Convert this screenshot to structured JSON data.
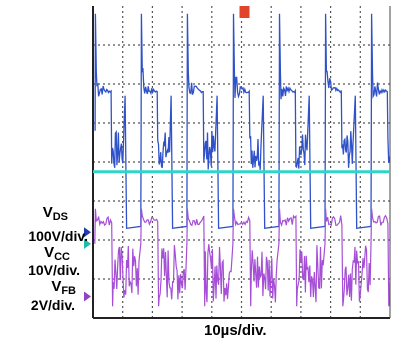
{
  "chart_data": {
    "type": "line",
    "x_label": "10µs/div.",
    "x_range_divisions": [
      0,
      10
    ],
    "y_range_divisions": [
      0,
      8
    ],
    "grid": true,
    "background": "#ffffff",
    "trigger_marker_color": "#e0442a",
    "series": [
      {
        "name_main": "V",
        "name_sub": "DS",
        "scale": "100V/div.",
        "color": "#2f52c9",
        "marker_color": "#1f3db0",
        "ground_div": 2.2,
        "switching_period_div": 1.55,
        "peak_div": 7.8,
        "plateau_div": 5.8,
        "low_div": 2.3,
        "ringing_div": [
          4.8,
          3.8
        ]
      },
      {
        "name_main": "V",
        "name_sub": "CC",
        "scale": "10V/div.",
        "color": "#2ed6c8",
        "marker_color": "#25b8ab",
        "ground_div": 1.9,
        "level_div": 3.75
      },
      {
        "name_main": "V",
        "name_sub": "FB",
        "scale": "2V/div.",
        "color": "#a64fd6",
        "marker_color": "#9242c4",
        "ground_div": 0.55,
        "high_div": 2.5,
        "low_div": 0.3,
        "ringing_div": [
          1.9,
          0.4
        ]
      }
    ]
  }
}
